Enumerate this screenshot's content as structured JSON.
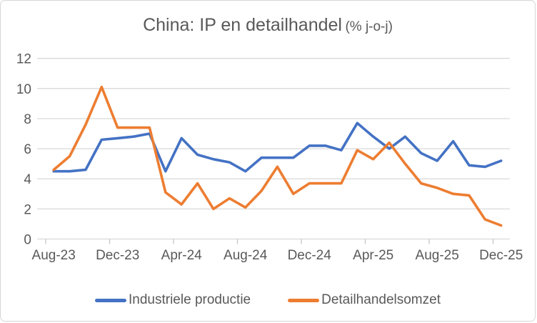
{
  "chart_data": {
    "type": "line",
    "title": "China: IP en detailhandel (% j-o-j)",
    "title_main": "China: IP en detailhandel",
    "title_suffix": "(% j-o-j)",
    "x": [
      "Aug-23",
      "Sep-23",
      "Oct-23",
      "Nov-23",
      "Dec-23",
      "Jan-24",
      "Feb-24",
      "Mar-24",
      "Apr-24",
      "May-24",
      "Jun-24",
      "Jul-24",
      "Aug-24",
      "Sep-24",
      "Oct-24",
      "Nov-24",
      "Dec-24",
      "Jan-25",
      "Feb-25",
      "Mar-25",
      "Apr-25",
      "May-25",
      "Jun-25",
      "Jul-25",
      "Aug-25",
      "Sep-25",
      "Oct-25",
      "Nov-25",
      "Dec-25"
    ],
    "x_tick_labels": [
      "Aug-23",
      "Dec-23",
      "Apr-24",
      "Aug-24",
      "Dec-24",
      "Apr-25",
      "Aug-25",
      "Dec-25"
    ],
    "x_tick_interval": 4,
    "ylim": [
      0,
      12
    ],
    "y_ticks": [
      0,
      2,
      4,
      6,
      8,
      10,
      12
    ],
    "grid": "horizontal-on",
    "legend_position": "bottom",
    "series": [
      {
        "name": "Industriele productie",
        "color": "#4472C4",
        "values": [
          4.5,
          4.5,
          4.6,
          6.6,
          6.7,
          6.8,
          7.0,
          4.5,
          6.7,
          5.6,
          5.3,
          5.1,
          4.5,
          5.4,
          5.4,
          5.4,
          6.2,
          6.2,
          5.9,
          7.7,
          6.8,
          6.0,
          6.8,
          5.7,
          5.2,
          6.5,
          4.9,
          4.8,
          5.2
        ]
      },
      {
        "name": "Detailhandelsomzet",
        "color": "#ED7D31",
        "values": [
          4.6,
          5.5,
          7.6,
          10.1,
          7.4,
          7.4,
          7.4,
          3.1,
          2.3,
          3.7,
          2.0,
          2.7,
          2.1,
          3.2,
          4.8,
          3.0,
          3.7,
          3.7,
          3.7,
          5.9,
          5.3,
          6.4,
          5.0,
          3.7,
          3.4,
          3.0,
          2.9,
          1.3,
          0.9
        ]
      }
    ],
    "axis_label_color": "#595959",
    "title_color": "#595959",
    "gridline_color": "#D9D9D9",
    "tick_mark_color": "#C6C6C6"
  }
}
